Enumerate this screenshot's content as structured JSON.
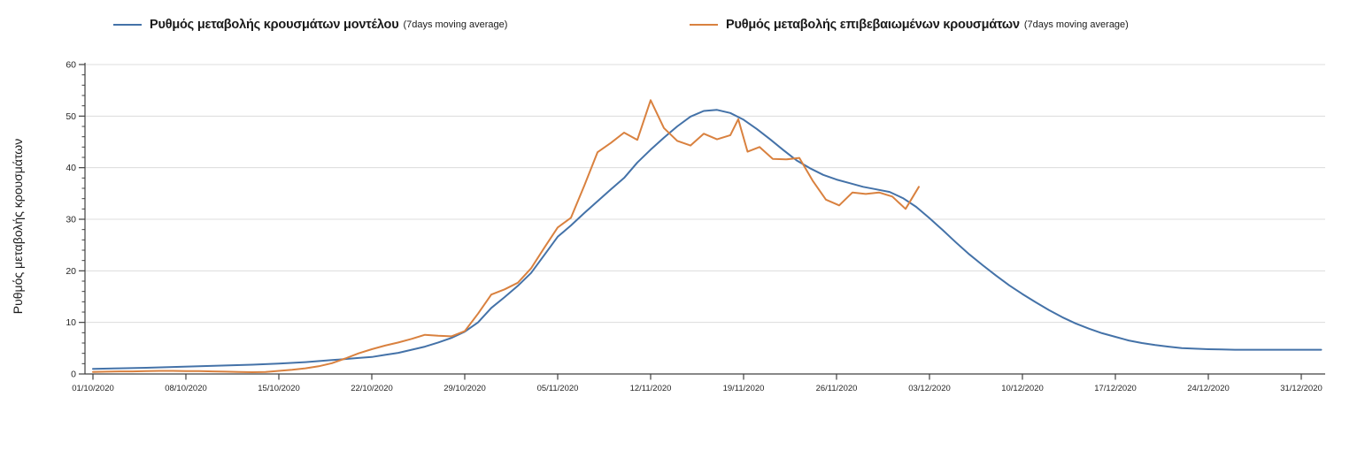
{
  "chart_data": {
    "type": "line",
    "title": "",
    "xlabel": "",
    "ylabel": "Ρυθμός μεταβολής κρουσμάτων",
    "ylim": [
      0,
      60
    ],
    "ytick_step": 10,
    "y_minor_tick_step": 2,
    "x_tick_labels": [
      "01/10/2020",
      "08/10/2020",
      "15/10/2020",
      "22/10/2020",
      "29/10/2020",
      "05/11/2020",
      "12/11/2020",
      "19/11/2020",
      "26/11/2020",
      "03/12/2020",
      "10/12/2020",
      "17/12/2020",
      "24/12/2020",
      "31/12/2020"
    ],
    "x_days_per_tick": 7,
    "x_domain_days": [
      0,
      92.5
    ],
    "grid": "horizontal-only",
    "legend_position": "top",
    "background_color": "#ffffff",
    "grid_color": "#dcdcdc",
    "axis_color": "#404040",
    "text_color": "#262626",
    "series": [
      {
        "id": "model",
        "label": "Ρυθμός μεταβολής κρουσμάτων μοντέλου",
        "label_suffix": "(7days moving average)",
        "color": "#4472a8",
        "points": [
          [
            0,
            1.0
          ],
          [
            2,
            1.1
          ],
          [
            4,
            1.2
          ],
          [
            6,
            1.35
          ],
          [
            8,
            1.5
          ],
          [
            10,
            1.65
          ],
          [
            12,
            1.8
          ],
          [
            14,
            2.0
          ],
          [
            16,
            2.3
          ],
          [
            18,
            2.7
          ],
          [
            20,
            3.1
          ],
          [
            21,
            3.3
          ],
          [
            22,
            3.7
          ],
          [
            23,
            4.1
          ],
          [
            24,
            4.7
          ],
          [
            25,
            5.3
          ],
          [
            26,
            6.1
          ],
          [
            27,
            7.0
          ],
          [
            28,
            8.2
          ],
          [
            29,
            10.0
          ],
          [
            30,
            12.8
          ],
          [
            31,
            14.9
          ],
          [
            32,
            17.1
          ],
          [
            33,
            19.6
          ],
          [
            34,
            23.1
          ],
          [
            35,
            26.6
          ],
          [
            36,
            28.8
          ],
          [
            37,
            31.2
          ],
          [
            38,
            33.5
          ],
          [
            39,
            35.8
          ],
          [
            40,
            38.0
          ],
          [
            41,
            41.0
          ],
          [
            42,
            43.5
          ],
          [
            43,
            45.8
          ],
          [
            44,
            48.0
          ],
          [
            45,
            49.9
          ],
          [
            46,
            51.0
          ],
          [
            47,
            51.2
          ],
          [
            48,
            50.6
          ],
          [
            49,
            49.3
          ],
          [
            50,
            47.5
          ],
          [
            51,
            45.5
          ],
          [
            52,
            43.4
          ],
          [
            53,
            41.4
          ],
          [
            54,
            39.9
          ],
          [
            55,
            38.6
          ],
          [
            56,
            37.7
          ],
          [
            57,
            37.0
          ],
          [
            58,
            36.3
          ],
          [
            59,
            35.8
          ],
          [
            60,
            35.3
          ],
          [
            61,
            34.1
          ],
          [
            62,
            32.4
          ],
          [
            63,
            30.2
          ],
          [
            64,
            27.9
          ],
          [
            65,
            25.5
          ],
          [
            66,
            23.2
          ],
          [
            67,
            21.1
          ],
          [
            68,
            19.1
          ],
          [
            69,
            17.2
          ],
          [
            70,
            15.5
          ],
          [
            71,
            13.9
          ],
          [
            72,
            12.4
          ],
          [
            73,
            11.0
          ],
          [
            74,
            9.8
          ],
          [
            75,
            8.8
          ],
          [
            76,
            7.9
          ],
          [
            77,
            7.2
          ],
          [
            78,
            6.5
          ],
          [
            79,
            6.0
          ],
          [
            80,
            5.6
          ],
          [
            81,
            5.3
          ],
          [
            82,
            5.0
          ],
          [
            83,
            4.9
          ],
          [
            84,
            4.8
          ],
          [
            85,
            4.75
          ],
          [
            86,
            4.7
          ],
          [
            88,
            4.7
          ],
          [
            90,
            4.7
          ],
          [
            92.5,
            4.7
          ]
        ]
      },
      {
        "id": "confirmed",
        "label": "Ρυθμός μεταβολής επιβεβαιωμένων κρουσμάτων",
        "label_suffix": "(7days moving average)",
        "color": "#d9813f",
        "points": [
          [
            0,
            0.4
          ],
          [
            1,
            0.45
          ],
          [
            2,
            0.5
          ],
          [
            3,
            0.5
          ],
          [
            4,
            0.55
          ],
          [
            5,
            0.6
          ],
          [
            6,
            0.6
          ],
          [
            7,
            0.55
          ],
          [
            8,
            0.55
          ],
          [
            9,
            0.5
          ],
          [
            10,
            0.45
          ],
          [
            11,
            0.4
          ],
          [
            12,
            0.35
          ],
          [
            13,
            0.4
          ],
          [
            14,
            0.6
          ],
          [
            15,
            0.8
          ],
          [
            16,
            1.1
          ],
          [
            17,
            1.5
          ],
          [
            18,
            2.1
          ],
          [
            19,
            3.0
          ],
          [
            20,
            4.0
          ],
          [
            21,
            4.8
          ],
          [
            22,
            5.5
          ],
          [
            23,
            6.1
          ],
          [
            24,
            6.8
          ],
          [
            25,
            7.6
          ],
          [
            26,
            7.4
          ],
          [
            27,
            7.3
          ],
          [
            28,
            8.3
          ],
          [
            29,
            11.7
          ],
          [
            30,
            15.4
          ],
          [
            31,
            16.4
          ],
          [
            32,
            17.7
          ],
          [
            33,
            20.5
          ],
          [
            34,
            24.5
          ],
          [
            35,
            28.4
          ],
          [
            36,
            30.3
          ],
          [
            37,
            36.5
          ],
          [
            38,
            43.0
          ],
          [
            39,
            44.8
          ],
          [
            40,
            46.8
          ],
          [
            41,
            45.4
          ],
          [
            42,
            53.1
          ],
          [
            43,
            47.7
          ],
          [
            44,
            45.2
          ],
          [
            45,
            44.3
          ],
          [
            46,
            46.6
          ],
          [
            47,
            45.5
          ],
          [
            48,
            46.3
          ],
          [
            48.6,
            49.4
          ],
          [
            49.3,
            43.1
          ],
          [
            50.2,
            44.0
          ],
          [
            51.2,
            41.7
          ],
          [
            52.2,
            41.6
          ],
          [
            53.2,
            41.9
          ],
          [
            54.2,
            37.5
          ],
          [
            55.2,
            33.8
          ],
          [
            56.2,
            32.7
          ],
          [
            57.2,
            35.2
          ],
          [
            58.2,
            34.9
          ],
          [
            59.2,
            35.2
          ],
          [
            60.2,
            34.4
          ],
          [
            61.2,
            32.0
          ],
          [
            62.2,
            36.3
          ]
        ]
      }
    ]
  }
}
